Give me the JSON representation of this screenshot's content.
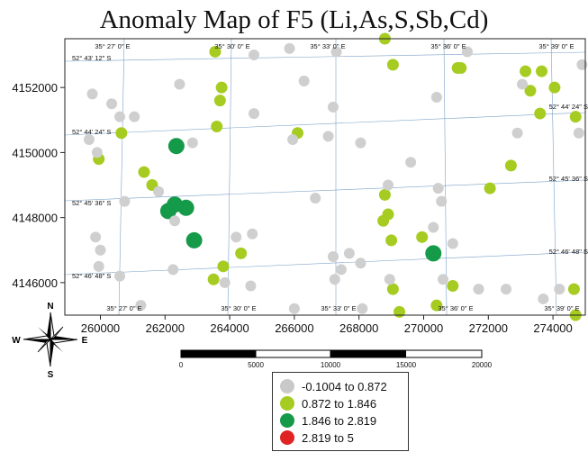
{
  "title": "Anomaly Map of F5 (Li,As,S,Sb,Cd)",
  "axes": {
    "x_ticks": [
      "260000",
      "262000",
      "264000",
      "266000",
      "268000",
      "270000",
      "272000",
      "274000"
    ],
    "y_ticks": [
      "4152000",
      "4150000",
      "4148000",
      "4146000"
    ],
    "lon_labels_top": [
      "35° 27' 0\" E",
      "35° 30' 0\" E",
      "35° 33' 0\" E",
      "35° 36' 0\" E",
      "35° 39' 0\" E"
    ],
    "lon_labels_bottom": [
      "35° 27' 0\" E",
      "35° 30' 0\" E",
      "35° 33' 0\" E",
      "35° 36' 0\" E",
      "35° 39' 0\" E"
    ],
    "lat_labels_left": [
      "52° 43' 12\" S",
      "52° 44' 24\" S",
      "52° 45' 36\" S",
      "52° 46' 48\" S"
    ],
    "lat_labels_right": [
      "52° 44' 24\" S",
      "52° 45' 36\" S",
      "52° 46' 48\" S"
    ]
  },
  "north_arrow": {
    "n": "N",
    "s": "S",
    "e": "E",
    "w": "W"
  },
  "scale_bar": {
    "labels": [
      "0",
      "5000",
      "10000",
      "15000",
      "20000"
    ]
  },
  "legend": [
    {
      "label": "-0.1004  to  0.872",
      "color": "#c9c9c9"
    },
    {
      "label": "0.872  to  1.846",
      "color": "#a6cc22"
    },
    {
      "label": "1.846  to  2.819",
      "color": "#149a48"
    },
    {
      "label": "2.819  to  5",
      "color": "#e02424"
    }
  ],
  "colors": {
    "gray": "#cfcfcf",
    "light_green": "#a6cc22",
    "dark_green": "#149a48",
    "red": "#e02424",
    "grid": "#7aa2c8",
    "frame": "#222222"
  },
  "points": [
    {
      "x": 262350,
      "y": 4150200,
      "class": 3
    },
    {
      "x": 262300,
      "y": 4148400,
      "class": 3
    },
    {
      "x": 262100,
      "y": 4148200,
      "class": 3
    },
    {
      "x": 262650,
      "y": 4148300,
      "class": 3
    },
    {
      "x": 262900,
      "y": 4147300,
      "class": 3
    },
    {
      "x": 270300,
      "y": 4146900,
      "class": 3
    },
    {
      "x": 263550,
      "y": 4153100,
      "class": 2
    },
    {
      "x": 263750,
      "y": 4152000,
      "class": 2
    },
    {
      "x": 263700,
      "y": 4151600,
      "class": 2
    },
    {
      "x": 263600,
      "y": 4150800,
      "class": 2
    },
    {
      "x": 260650,
      "y": 4150600,
      "class": 2
    },
    {
      "x": 259950,
      "y": 4149800,
      "class": 2
    },
    {
      "x": 261350,
      "y": 4149400,
      "class": 2
    },
    {
      "x": 261600,
      "y": 4149000,
      "class": 2
    },
    {
      "x": 264350,
      "y": 4146900,
      "class": 2
    },
    {
      "x": 263800,
      "y": 4146500,
      "class": 2
    },
    {
      "x": 263500,
      "y": 4146100,
      "class": 2
    },
    {
      "x": 266100,
      "y": 4150600,
      "class": 2
    },
    {
      "x": 268800,
      "y": 4153500,
      "class": 2
    },
    {
      "x": 269050,
      "y": 4152700,
      "class": 2
    },
    {
      "x": 271050,
      "y": 4152600,
      "class": 2
    },
    {
      "x": 271150,
      "y": 4152600,
      "class": 2
    },
    {
      "x": 268800,
      "y": 4148700,
      "class": 2
    },
    {
      "x": 268900,
      "y": 4148100,
      "class": 2
    },
    {
      "x": 268750,
      "y": 4147900,
      "class": 2
    },
    {
      "x": 269000,
      "y": 4147300,
      "class": 2
    },
    {
      "x": 269950,
      "y": 4147400,
      "class": 2
    },
    {
      "x": 272050,
      "y": 4148900,
      "class": 2
    },
    {
      "x": 272700,
      "y": 4149600,
      "class": 2
    },
    {
      "x": 269050,
      "y": 4145800,
      "class": 2
    },
    {
      "x": 269250,
      "y": 4145100,
      "class": 2
    },
    {
      "x": 270400,
      "y": 4145300,
      "class": 2
    },
    {
      "x": 270900,
      "y": 4145900,
      "class": 2
    },
    {
      "x": 273150,
      "y": 4152500,
      "class": 2
    },
    {
      "x": 273650,
      "y": 4152500,
      "class": 2
    },
    {
      "x": 273300,
      "y": 4151900,
      "class": 2
    },
    {
      "x": 274050,
      "y": 4152000,
      "class": 2
    },
    {
      "x": 273600,
      "y": 4151200,
      "class": 2
    },
    {
      "x": 274700,
      "y": 4151100,
      "class": 2
    },
    {
      "x": 274650,
      "y": 4145800,
      "class": 2
    },
    {
      "x": 274700,
      "y": 4145000,
      "class": 2
    },
    {
      "x": 259750,
      "y": 4151800,
      "class": 1
    },
    {
      "x": 259650,
      "y": 4150400,
      "class": 1
    },
    {
      "x": 259900,
      "y": 4150000,
      "class": 1
    },
    {
      "x": 260350,
      "y": 4151500,
      "class": 1
    },
    {
      "x": 260600,
      "y": 4151100,
      "class": 1
    },
    {
      "x": 261050,
      "y": 4151100,
      "class": 1
    },
    {
      "x": 260750,
      "y": 4148500,
      "class": 1
    },
    {
      "x": 259850,
      "y": 4147400,
      "class": 1
    },
    {
      "x": 259950,
      "y": 4146500,
      "class": 1
    },
    {
      "x": 260000,
      "y": 4147000,
      "class": 1
    },
    {
      "x": 260600,
      "y": 4146200,
      "class": 1
    },
    {
      "x": 261250,
      "y": 4145300,
      "class": 1
    },
    {
      "x": 262250,
      "y": 4146400,
      "class": 1
    },
    {
      "x": 262300,
      "y": 4147900,
      "class": 1
    },
    {
      "x": 262450,
      "y": 4152100,
      "class": 1
    },
    {
      "x": 262850,
      "y": 4150300,
      "class": 1
    },
    {
      "x": 261800,
      "y": 4148800,
      "class": 1
    },
    {
      "x": 264200,
      "y": 4147400,
      "class": 1
    },
    {
      "x": 264700,
      "y": 4147500,
      "class": 1
    },
    {
      "x": 263850,
      "y": 4146000,
      "class": 1
    },
    {
      "x": 264650,
      "y": 4145900,
      "class": 1
    },
    {
      "x": 264750,
      "y": 4153000,
      "class": 1
    },
    {
      "x": 264750,
      "y": 4151200,
      "class": 1
    },
    {
      "x": 265850,
      "y": 4153200,
      "class": 1
    },
    {
      "x": 266300,
      "y": 4152200,
      "class": 1
    },
    {
      "x": 265950,
      "y": 4150400,
      "class": 1
    },
    {
      "x": 266000,
      "y": 4145200,
      "class": 1
    },
    {
      "x": 266650,
      "y": 4148600,
      "class": 1
    },
    {
      "x": 267050,
      "y": 4150500,
      "class": 1
    },
    {
      "x": 267200,
      "y": 4151400,
      "class": 1
    },
    {
      "x": 267300,
      "y": 4153100,
      "class": 1
    },
    {
      "x": 267200,
      "y": 4146800,
      "class": 1
    },
    {
      "x": 267450,
      "y": 4146400,
      "class": 1
    },
    {
      "x": 267700,
      "y": 4146900,
      "class": 1
    },
    {
      "x": 268050,
      "y": 4146600,
      "class": 1
    },
    {
      "x": 267250,
      "y": 4146100,
      "class": 1
    },
    {
      "x": 268100,
      "y": 4145200,
      "class": 1
    },
    {
      "x": 268900,
      "y": 4149000,
      "class": 1
    },
    {
      "x": 268950,
      "y": 4146100,
      "class": 1
    },
    {
      "x": 268050,
      "y": 4150300,
      "class": 1
    },
    {
      "x": 269600,
      "y": 4149700,
      "class": 1
    },
    {
      "x": 270400,
      "y": 4151700,
      "class": 1
    },
    {
      "x": 270450,
      "y": 4148900,
      "class": 1
    },
    {
      "x": 270300,
      "y": 4147700,
      "class": 1
    },
    {
      "x": 270600,
      "y": 4146100,
      "class": 1
    },
    {
      "x": 270900,
      "y": 4147200,
      "class": 1
    },
    {
      "x": 270550,
      "y": 4148500,
      "class": 1
    },
    {
      "x": 271700,
      "y": 4145800,
      "class": 1
    },
    {
      "x": 271350,
      "y": 4153100,
      "class": 1
    },
    {
      "x": 273050,
      "y": 4152100,
      "class": 1
    },
    {
      "x": 272900,
      "y": 4150600,
      "class": 1
    },
    {
      "x": 274800,
      "y": 4150600,
      "class": 1
    },
    {
      "x": 274900,
      "y": 4152700,
      "class": 1
    },
    {
      "x": 272550,
      "y": 4145800,
      "class": 1
    },
    {
      "x": 273700,
      "y": 4145500,
      "class": 1
    },
    {
      "x": 274200,
      "y": 4145800,
      "class": 1
    }
  ]
}
